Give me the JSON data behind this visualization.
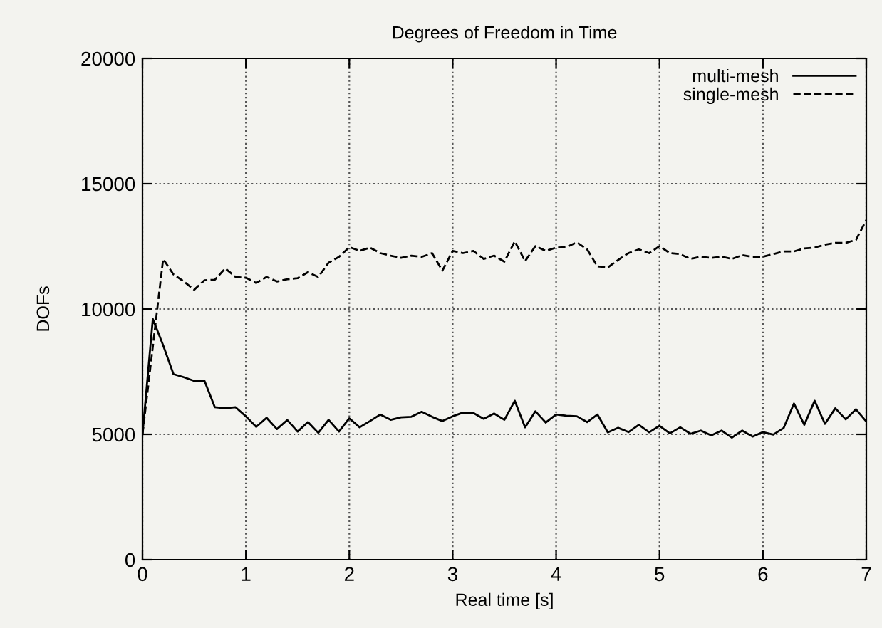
{
  "chart_data": {
    "type": "line",
    "title": "Degrees of Freedom in Time",
    "xlabel": "Real time [s]",
    "ylabel": "DOFs",
    "xlim": [
      0,
      7
    ],
    "xticks": [
      0,
      1,
      2,
      3,
      4,
      5,
      6,
      7
    ],
    "ylim": [
      0,
      20000
    ],
    "yticks": [
      0,
      5000,
      10000,
      15000,
      20000
    ],
    "grid": true,
    "legend": "top right",
    "marker": "none",
    "series": [
      {
        "name": "multi-mesh",
        "color": "#000000",
        "line_style": "solid",
        "x": [
          0,
          0.1,
          0.2,
          0.3,
          0.4,
          0.5,
          0.6,
          0.7,
          0.8,
          0.9,
          1.0,
          1.1,
          1.2,
          1.3,
          1.4,
          1.5,
          1.6,
          1.7,
          1.8,
          1.9,
          2.0,
          2.1,
          2.2,
          2.3,
          2.4,
          2.5,
          2.6,
          2.7,
          2.8,
          2.9,
          3.0,
          3.1,
          3.2,
          3.3,
          3.4,
          3.5,
          3.6,
          3.7,
          3.8,
          3.9,
          4.0,
          4.1,
          4.2,
          4.3,
          4.4,
          4.5,
          4.6,
          4.7,
          4.8,
          4.9,
          5.0,
          5.1,
          5.2,
          5.3,
          5.4,
          5.5,
          5.6,
          5.7,
          5.8,
          5.9,
          6.0,
          6.1,
          6.2,
          6.3,
          6.4,
          6.5,
          6.6,
          6.7,
          6.8,
          6.9,
          7.0
        ],
        "values": [
          5000,
          9600,
          8550,
          7400,
          7280,
          7130,
          7130,
          6080,
          6040,
          6080,
          5720,
          5300,
          5660,
          5210,
          5570,
          5110,
          5490,
          5060,
          5580,
          5110,
          5640,
          5280,
          5530,
          5790,
          5580,
          5680,
          5700,
          5900,
          5700,
          5530,
          5720,
          5870,
          5850,
          5620,
          5830,
          5580,
          6340,
          5280,
          5920,
          5470,
          5790,
          5740,
          5720,
          5490,
          5790,
          5080,
          5260,
          5090,
          5380,
          5080,
          5340,
          5040,
          5280,
          5020,
          5150,
          4960,
          5150,
          4870,
          5150,
          4910,
          5090,
          4990,
          5250,
          6230,
          5380,
          6340,
          5420,
          6040,
          5600,
          6000,
          5510
        ]
      },
      {
        "name": "single-mesh",
        "color": "#000000",
        "line_style": "dashed",
        "x": [
          0,
          0.2,
          0.3,
          0.4,
          0.5,
          0.6,
          0.7,
          0.8,
          0.9,
          1.0,
          1.1,
          1.2,
          1.3,
          1.4,
          1.5,
          1.6,
          1.7,
          1.8,
          1.9,
          2.0,
          2.1,
          2.2,
          2.3,
          2.4,
          2.5,
          2.6,
          2.7,
          2.8,
          2.9,
          3.0,
          3.1,
          3.2,
          3.3,
          3.4,
          3.5,
          3.6,
          3.7,
          3.8,
          3.9,
          4.0,
          4.1,
          4.2,
          4.3,
          4.4,
          4.5,
          4.6,
          4.7,
          4.8,
          4.9,
          5.0,
          5.1,
          5.2,
          5.3,
          5.4,
          5.5,
          5.6,
          5.7,
          5.8,
          5.9,
          6.0,
          6.1,
          6.2,
          6.3,
          6.4,
          6.5,
          6.6,
          6.7,
          6.8,
          6.9,
          7.0
        ],
        "values": [
          5000,
          12000,
          11380,
          11100,
          10770,
          11150,
          11170,
          11620,
          11280,
          11250,
          11040,
          11280,
          11100,
          11190,
          11230,
          11470,
          11280,
          11850,
          12080,
          12470,
          12320,
          12450,
          12230,
          12130,
          12040,
          12130,
          12080,
          12230,
          11530,
          12320,
          12230,
          12320,
          12000,
          12130,
          11890,
          12700,
          11910,
          12510,
          12320,
          12450,
          12470,
          12660,
          12380,
          11700,
          11660,
          11960,
          12230,
          12380,
          12230,
          12510,
          12230,
          12190,
          12000,
          12090,
          12040,
          12090,
          12000,
          12150,
          12080,
          12090,
          12190,
          12300,
          12300,
          12420,
          12450,
          12570,
          12640,
          12640,
          12760,
          13550
        ]
      }
    ]
  }
}
